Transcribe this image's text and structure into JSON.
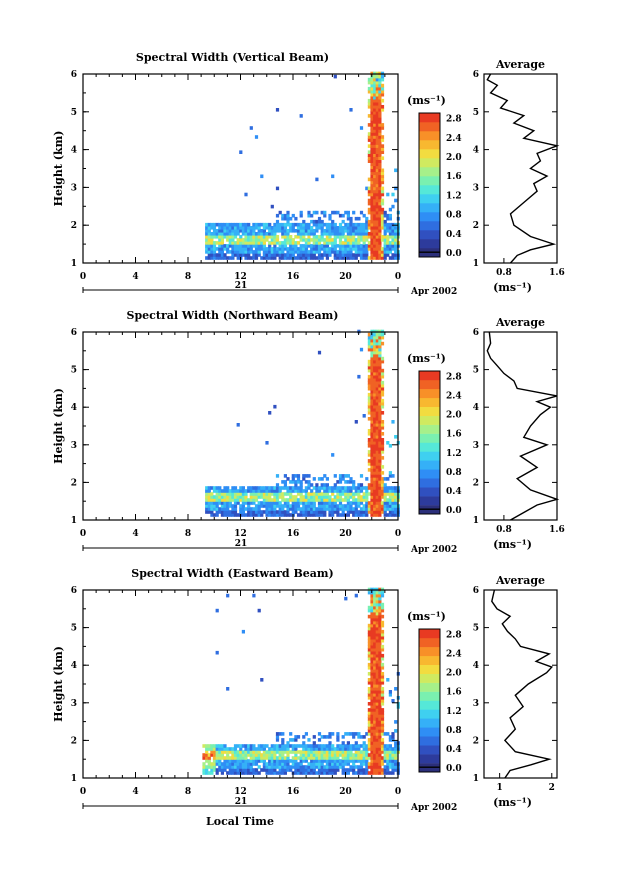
{
  "chart_data": [
    {
      "type": "heatmap",
      "title": "Spectral Width (Vertical Beam)",
      "ylabel": "Height (km)",
      "xlabel": "",
      "x_ticks": [
        "0",
        "4",
        "8",
        "12",
        "16",
        "20",
        "0"
      ],
      "y_ticks": [
        "1",
        "2",
        "3",
        "4",
        "5",
        "6"
      ],
      "xlim": [
        0,
        24
      ],
      "ylim": [
        1,
        6
      ],
      "date_day": "21",
      "date_label": "Apr 2002",
      "colorbar": {
        "unit": "(ms⁻¹)",
        "range": [
          0,
          3.0
        ],
        "ticks": [
          "0.0",
          "0.4",
          "0.8",
          "1.2",
          "1.6",
          "2.0",
          "2.4",
          "2.8"
        ]
      },
      "average_profile": {
        "title": "Average",
        "xlabel": "(ms⁻¹)",
        "x_ticks": [
          "0.8",
          "1.6"
        ],
        "xlim": [
          0.5,
          1.6
        ],
        "y_ticks": [
          "1",
          "2",
          "3",
          "4",
          "5",
          "6"
        ],
        "heights": [
          1.0,
          1.2,
          1.35,
          1.5,
          1.7,
          2.0,
          2.3,
          2.6,
          2.9,
          3.1,
          3.3,
          3.5,
          3.7,
          3.9,
          4.1,
          4.3,
          4.5,
          4.7,
          4.9,
          5.1,
          5.3,
          5.5,
          5.7,
          5.85,
          6.0
        ],
        "values": [
          0.9,
          1.0,
          1.2,
          1.55,
          1.2,
          0.95,
          0.9,
          1.1,
          1.3,
          1.25,
          1.45,
          1.2,
          1.35,
          1.3,
          1.6,
          1.1,
          1.25,
          0.95,
          1.1,
          0.75,
          0.85,
          0.6,
          0.7,
          0.55,
          0.6
        ]
      }
    },
    {
      "type": "heatmap",
      "title": "Spectral Width (Northward Beam)",
      "ylabel": "Height (km)",
      "xlabel": "",
      "x_ticks": [
        "0",
        "4",
        "8",
        "12",
        "16",
        "20",
        "0"
      ],
      "y_ticks": [
        "1",
        "2",
        "3",
        "4",
        "5",
        "6"
      ],
      "xlim": [
        0,
        24
      ],
      "ylim": [
        1,
        6
      ],
      "date_day": "21",
      "date_label": "Apr 2002",
      "colorbar": {
        "unit": "(ms⁻¹)",
        "range": [
          0,
          3.0
        ],
        "ticks": [
          "0.0",
          "0.4",
          "0.8",
          "1.2",
          "1.6",
          "2.0",
          "2.4",
          "2.8"
        ]
      },
      "average_profile": {
        "title": "Average",
        "xlabel": "(ms⁻¹)",
        "x_ticks": [
          "0.8",
          "1.6"
        ],
        "xlim": [
          0.5,
          1.6
        ],
        "y_ticks": [
          "1",
          "2",
          "3",
          "4",
          "5",
          "6"
        ],
        "heights": [
          1.0,
          1.2,
          1.4,
          1.55,
          1.8,
          2.1,
          2.4,
          2.7,
          3.0,
          3.2,
          3.5,
          3.8,
          4.0,
          4.15,
          4.3,
          4.5,
          4.7,
          4.9,
          5.1,
          5.3,
          5.5,
          5.7,
          6.0
        ],
        "values": [
          0.9,
          1.1,
          1.3,
          1.6,
          1.2,
          1.0,
          1.3,
          1.05,
          1.45,
          1.1,
          1.2,
          1.35,
          1.5,
          1.3,
          1.6,
          1.0,
          0.95,
          0.8,
          0.7,
          0.6,
          0.55,
          0.6,
          0.58
        ]
      }
    },
    {
      "type": "heatmap",
      "title": "Spectral Width (Eastward Beam)",
      "ylabel": "Height (km)",
      "xlabel": "Local Time",
      "x_ticks": [
        "0",
        "4",
        "8",
        "12",
        "16",
        "20",
        "0"
      ],
      "y_ticks": [
        "1",
        "2",
        "3",
        "4",
        "5",
        "6"
      ],
      "xlim": [
        0,
        24
      ],
      "ylim": [
        1,
        6
      ],
      "date_day": "21",
      "date_label": "Apr 2002",
      "colorbar": {
        "unit": "(ms⁻¹)",
        "range": [
          0,
          3.0
        ],
        "ticks": [
          "0.0",
          "0.4",
          "0.8",
          "1.2",
          "1.6",
          "2.0",
          "2.4",
          "2.8"
        ]
      },
      "average_profile": {
        "title": "Average",
        "xlabel": "(ms⁻¹)",
        "x_ticks": [
          "1",
          "2"
        ],
        "xlim": [
          0.7,
          2.1
        ],
        "y_ticks": [
          "1",
          "2",
          "3",
          "4",
          "5",
          "6"
        ],
        "heights": [
          1.0,
          1.2,
          1.35,
          1.5,
          1.7,
          2.0,
          2.3,
          2.6,
          2.9,
          3.2,
          3.5,
          3.8,
          3.95,
          4.1,
          4.3,
          4.5,
          4.7,
          4.9,
          5.1,
          5.3,
          5.5,
          5.7,
          6.0
        ],
        "values": [
          1.1,
          1.2,
          1.6,
          1.95,
          1.3,
          1.1,
          1.3,
          1.2,
          1.45,
          1.3,
          1.55,
          1.9,
          2.0,
          1.7,
          1.95,
          1.4,
          1.3,
          1.15,
          1.05,
          1.2,
          0.95,
          0.85,
          0.9
        ]
      }
    }
  ]
}
